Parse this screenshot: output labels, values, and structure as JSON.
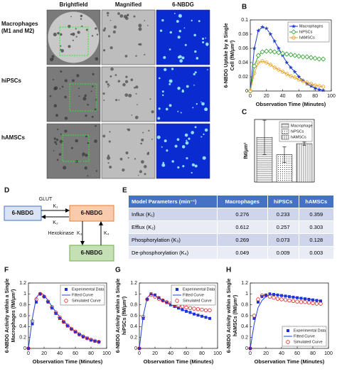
{
  "image_grid": {
    "columns": [
      "Brightfield",
      "Magnified",
      "6-NBDG"
    ],
    "rows": [
      [
        "Macrophages",
        "(M1 and M2)"
      ],
      [
        "hiPSCs"
      ],
      [
        "hAMSCs"
      ]
    ]
  },
  "chart_data": [
    {
      "type": "line",
      "label": "B",
      "ylabel": [
        "6-NBDG Uptake by a Single",
        "Cell (fM/μm²)"
      ],
      "xlabel": "Observation Time (Minutes)",
      "x": [
        0,
        5,
        10,
        15,
        20,
        25,
        30,
        35,
        40,
        45,
        50,
        55,
        60,
        65,
        70,
        75,
        80,
        85,
        90
      ],
      "xlim": [
        0,
        100
      ],
      "xticks": [
        0,
        20,
        40,
        60,
        80,
        100
      ],
      "ylim": [
        0,
        0.1
      ],
      "yticks": [
        0,
        0.02,
        0.04,
        0.06,
        0.08,
        0.1
      ],
      "legend": "upper right",
      "series": [
        {
          "name": "Macrophages",
          "color": "#1f3fd0",
          "marker": "star",
          "line": true,
          "values": [
            0,
            0.06,
            0.085,
            0.09,
            0.088,
            0.08,
            0.07,
            0.06,
            0.05,
            0.04,
            0.033,
            0.027,
            0.02,
            0.015,
            0.01,
            0.007,
            0.004,
            0.002,
            0.001
          ]
        },
        {
          "name": "hiPSCs",
          "color": "#2ca02c",
          "marker": "diamond-open",
          "line": true,
          "values": [
            0,
            0.035,
            0.05,
            0.055,
            0.056,
            0.056,
            0.055,
            0.054,
            0.053,
            0.052,
            0.051,
            0.05,
            0.049,
            0.048,
            0.048,
            0.047,
            0.046,
            0.045,
            0.045
          ]
        },
        {
          "name": "hAMSCs",
          "color": "#e8a020",
          "marker": "circle-open",
          "line": true,
          "values": [
            0,
            0.025,
            0.04,
            0.042,
            0.04,
            0.037,
            0.033,
            0.03,
            0.027,
            0.024,
            0.021,
            0.019,
            0.016,
            0.014,
            0.012,
            0.01,
            0.008,
            0.007,
            0.006
          ]
        }
      ]
    },
    {
      "type": "bar",
      "label": "C",
      "ylabel": [
        "fM/μm²"
      ],
      "categories": [
        "Macrophage",
        "hiPSCs",
        "hAMSCs"
      ],
      "values": [
        0.57,
        0.35,
        0.49
      ],
      "errors": [
        0.22,
        0.1,
        0.02
      ],
      "patterns": [
        "horizontal",
        "dotted",
        "vertical"
      ],
      "ylim": [
        0,
        0.8
      ],
      "legend": "upper right"
    },
    {
      "type": "line",
      "label": "F",
      "ylabel": [
        "6-NBDG Activity within a Single",
        "Macrophages (fM/μm²)"
      ],
      "xlabel": "Observation Time (Minutes)",
      "x": [
        0,
        5,
        10,
        15,
        20,
        25,
        30,
        35,
        40,
        45,
        50,
        55,
        60,
        65,
        70,
        75,
        80,
        85,
        90
      ],
      "xlim": [
        0,
        100
      ],
      "xticks": [
        0,
        20,
        40,
        60,
        80,
        100
      ],
      "ylim": [
        0,
        1.2
      ],
      "yticks": [
        0,
        0.2,
        0.4,
        0.6,
        0.8,
        1,
        1.2
      ],
      "legend": "upper right",
      "series": [
        {
          "name": "Experimental Data",
          "color": "#1a2fd8",
          "marker": "square",
          "line": false,
          "values": [
            0,
            0.45,
            0.85,
            1.0,
            0.95,
            0.85,
            0.74,
            0.64,
            0.55,
            0.48,
            0.41,
            0.35,
            0.3,
            0.25,
            0.21,
            0.18,
            0.15,
            0.13,
            0.12
          ]
        },
        {
          "name": "Fitted Curve",
          "color": "#2040e0",
          "marker": null,
          "line": true,
          "values": [
            0,
            0.55,
            0.93,
            1.02,
            0.98,
            0.88,
            0.77,
            0.67,
            0.58,
            0.5,
            0.43,
            0.37,
            0.31,
            0.27,
            0.23,
            0.19,
            0.16,
            0.14,
            0.12
          ]
        },
        {
          "name": "Simulated Curve",
          "color": "#e02020",
          "marker": "circle-open",
          "line": false,
          "values": [
            0,
            0.5,
            0.9,
            1.0,
            0.95,
            0.86,
            0.76,
            0.66,
            0.57,
            0.49,
            0.42,
            0.36,
            0.31,
            0.26,
            0.22,
            0.19,
            0.16,
            0.14,
            0.12
          ]
        }
      ]
    },
    {
      "type": "line",
      "label": "G",
      "ylabel": [
        "6-NBDG Activity within a Single",
        "hiPSCs (fM/μm²)"
      ],
      "xlabel": "Observation Time (Minutes)",
      "x": [
        0,
        5,
        10,
        15,
        20,
        25,
        30,
        35,
        40,
        45,
        50,
        55,
        60,
        65,
        70,
        75,
        80,
        85,
        90
      ],
      "xlim": [
        0,
        100
      ],
      "xticks": [
        0,
        20,
        40,
        60,
        80,
        100
      ],
      "ylim": [
        0,
        1.2
      ],
      "yticks": [
        0,
        0.2,
        0.4,
        0.6,
        0.8,
        1,
        1.2
      ],
      "legend": "upper right",
      "series": [
        {
          "name": "Experimental Data",
          "color": "#1a2fd8",
          "marker": "square",
          "line": false,
          "values": [
            0,
            0.55,
            0.9,
            1.0,
            0.98,
            0.93,
            0.88,
            0.84,
            0.8,
            0.77,
            0.74,
            0.71,
            0.68,
            0.66,
            0.63,
            0.61,
            0.59,
            0.57,
            0.55
          ]
        },
        {
          "name": "Fitted Curve",
          "color": "#2040e0",
          "marker": null,
          "line": true,
          "values": [
            0,
            0.6,
            0.93,
            1.0,
            0.97,
            0.92,
            0.88,
            0.84,
            0.8,
            0.77,
            0.74,
            0.71,
            0.68,
            0.66,
            0.63,
            0.61,
            0.59,
            0.57,
            0.55
          ]
        },
        {
          "name": "Simulated Curve",
          "color": "#e02020",
          "marker": "circle-open",
          "line": false,
          "values": [
            0,
            0.58,
            0.9,
            0.98,
            0.95,
            0.91,
            0.88,
            0.85,
            0.82,
            0.8,
            0.78,
            0.77,
            0.75,
            0.74,
            0.73,
            0.72,
            0.71,
            0.7,
            0.7
          ]
        }
      ]
    },
    {
      "type": "line",
      "label": "H",
      "ylabel": [
        "6-NBDG Activity within a Single",
        "hAMSCs (fM/μm²)"
      ],
      "xlabel": "Observation Time (Minutes)",
      "x": [
        0,
        5,
        10,
        15,
        20,
        25,
        30,
        35,
        40,
        45,
        50,
        55,
        60,
        65,
        70,
        75,
        80,
        85,
        90
      ],
      "xlim": [
        0,
        100
      ],
      "xticks": [
        0,
        20,
        40,
        60,
        80,
        100
      ],
      "ylim": [
        0,
        1.2
      ],
      "yticks": [
        0,
        0.2,
        0.4,
        0.6,
        0.8,
        1,
        1.2
      ],
      "legend": "lower right",
      "series": [
        {
          "name": "Experimental Data",
          "color": "#1a2fd8",
          "marker": "square",
          "line": false,
          "values": [
            0,
            0.55,
            0.85,
            0.95,
            0.98,
            1.0,
            0.99,
            0.98,
            0.97,
            0.96,
            0.95,
            0.94,
            0.93,
            0.92,
            0.91,
            0.9,
            0.89,
            0.88,
            0.87
          ]
        },
        {
          "name": "Fitted Curve",
          "color": "#2040e0",
          "marker": null,
          "line": true,
          "values": [
            0,
            0.45,
            0.75,
            0.88,
            0.95,
            0.98,
            0.99,
            0.98,
            0.97,
            0.96,
            0.95,
            0.94,
            0.93,
            0.92,
            0.91,
            0.9,
            0.89,
            0.88,
            0.87
          ]
        },
        {
          "name": "Simulated Curve",
          "color": "#e02020",
          "marker": "circle-open",
          "line": false,
          "values": [
            0,
            0.6,
            0.9,
            0.97,
            0.97,
            0.95,
            0.93,
            0.91,
            0.9,
            0.89,
            0.88,
            0.87,
            0.86,
            0.85,
            0.85,
            0.84,
            0.83,
            0.82,
            0.82
          ]
        }
      ]
    }
  ],
  "diagram": {
    "label": "D",
    "nodes": [
      "6-NBDG",
      "6-NBDG",
      "6-NBDG"
    ],
    "texts": {
      "transporter": "GLUT",
      "k1": "K₁",
      "k2": "K₂",
      "enzyme": "Hexokinase",
      "k3": "K₃",
      "k4": "K₄"
    }
  },
  "table": {
    "label": "E",
    "header": [
      "Model Parameters (min⁻¹)",
      "Macrophages",
      "hiPSCs",
      "hAMSCs"
    ],
    "rows": [
      [
        "Influx (K₁)",
        "0.276",
        "0.233",
        "0.359"
      ],
      [
        "Efflux (K₂)",
        "0.612",
        "0.257",
        "0.303"
      ],
      [
        "Phosphorylation (K₃)",
        "0.269",
        "0.073",
        "0.128"
      ],
      [
        "De-phosphorylation (K₄)",
        "0.049",
        "0.009",
        "0.003"
      ]
    ]
  }
}
